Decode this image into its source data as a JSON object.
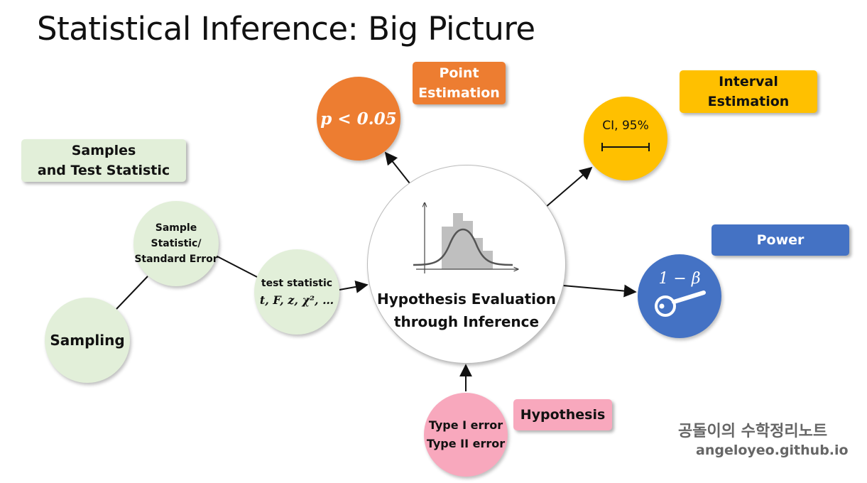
{
  "title": "Statistical Inference: Big Picture",
  "labels": {
    "samples_line1": "Samples",
    "samples_line2": "and Test Statistic",
    "point_line1": "Point",
    "point_line2": "Estimation",
    "interval_line1": "Interval",
    "interval_line2": "Estimation",
    "power": "Power",
    "hypothesis": "Hypothesis"
  },
  "nodes": {
    "sampling": "Sampling",
    "sample_stat_line1": "Sample",
    "sample_stat_line2": "Statistic/",
    "sample_stat_line3": "Standard Error",
    "test_stat_line1": "test statistic",
    "test_stat_line2": "t, F, z, χ², …",
    "center_line1": "Hypothesis Evaluation",
    "center_line2": "through Inference",
    "p_value": "p < 0.05",
    "ci": "CI, 95%",
    "power_formula": "1 − β",
    "type1": "Type I error",
    "type2": "Type II error"
  },
  "watermark": {
    "korean": "공돌이의 수학정리노트",
    "url": "angeloyeo.github.io"
  },
  "colors": {
    "green": "#e2efd9",
    "orange": "#ed7d31",
    "gold": "#ffc000",
    "blue": "#4472c4",
    "pink": "#f8a8bd"
  }
}
